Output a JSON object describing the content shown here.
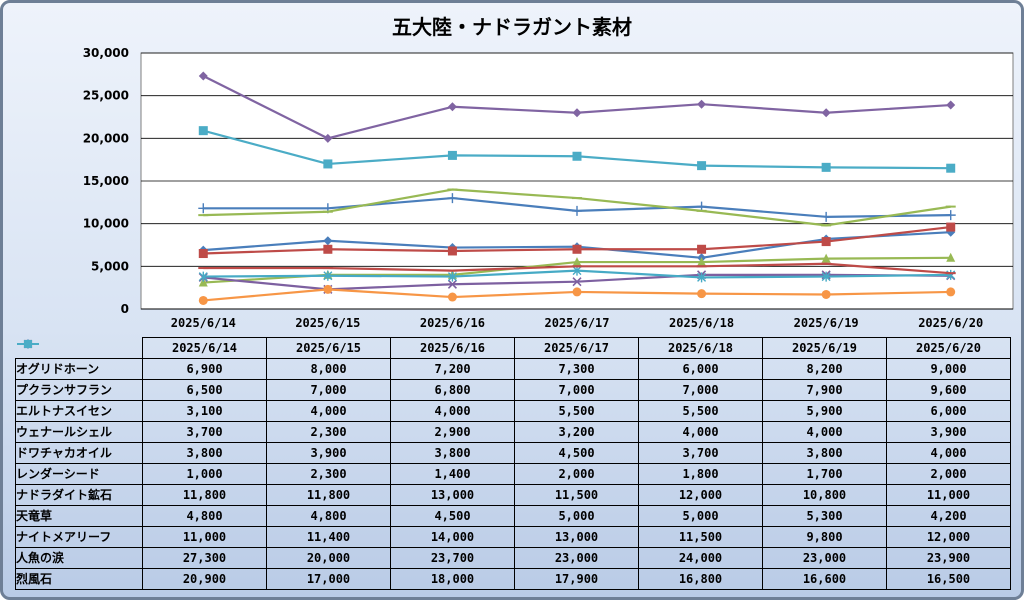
{
  "chart_data": {
    "type": "line",
    "title": "五大陸・ナドラガント素材",
    "xlabel": "",
    "ylabel": "",
    "ylim": [
      0,
      30000
    ],
    "ytick_step": 5000,
    "grid": true,
    "legend": "data-table",
    "categories": [
      "2025/6/14",
      "2025/6/15",
      "2025/6/16",
      "2025/6/17",
      "2025/6/18",
      "2025/6/19",
      "2025/6/20"
    ],
    "series": [
      {
        "name": "オグリドホーン",
        "color": "#4a7ebb",
        "marker": "diamond",
        "values": [
          6900,
          8000,
          7200,
          7300,
          6000,
          8200,
          9000
        ]
      },
      {
        "name": "プクランサフラン",
        "color": "#be4b48",
        "marker": "square",
        "values": [
          6500,
          7000,
          6800,
          7000,
          7000,
          7900,
          9600
        ]
      },
      {
        "name": "エルトナスイセン",
        "color": "#98b954",
        "marker": "triangle",
        "values": [
          3100,
          4000,
          4000,
          5500,
          5500,
          5900,
          6000
        ]
      },
      {
        "name": "ウェナールシェル",
        "color": "#7d60a0",
        "marker": "x",
        "values": [
          3700,
          2300,
          2900,
          3200,
          4000,
          4000,
          3900
        ]
      },
      {
        "name": "ドワチャカオイル",
        "color": "#46aac5",
        "marker": "star",
        "values": [
          3800,
          3900,
          3800,
          4500,
          3700,
          3800,
          4000
        ]
      },
      {
        "name": "レンダーシード",
        "color": "#f79646",
        "marker": "circle",
        "values": [
          1000,
          2300,
          1400,
          2000,
          1800,
          1700,
          2000
        ]
      },
      {
        "name": "ナドラダイト鉱石",
        "color": "#4a7ebb",
        "marker": "plus",
        "values": [
          11800,
          11800,
          13000,
          11500,
          12000,
          10800,
          11000
        ]
      },
      {
        "name": "天竜草",
        "color": "#be4b48",
        "marker": "dash",
        "values": [
          4800,
          4800,
          4500,
          5000,
          5000,
          5300,
          4200
        ]
      },
      {
        "name": "ナイトメアリーフ",
        "color": "#98b954",
        "marker": "dash",
        "values": [
          11000,
          11400,
          14000,
          13000,
          11500,
          9800,
          12000
        ]
      },
      {
        "name": "人魚の涙",
        "color": "#8064a2",
        "marker": "diamond",
        "values": [
          27300,
          20000,
          23700,
          23000,
          24000,
          23000,
          23900
        ]
      },
      {
        "name": "烈風石",
        "color": "#4bacc6",
        "marker": "square",
        "values": [
          20900,
          17000,
          18000,
          17900,
          16800,
          16600,
          16500
        ]
      }
    ]
  }
}
